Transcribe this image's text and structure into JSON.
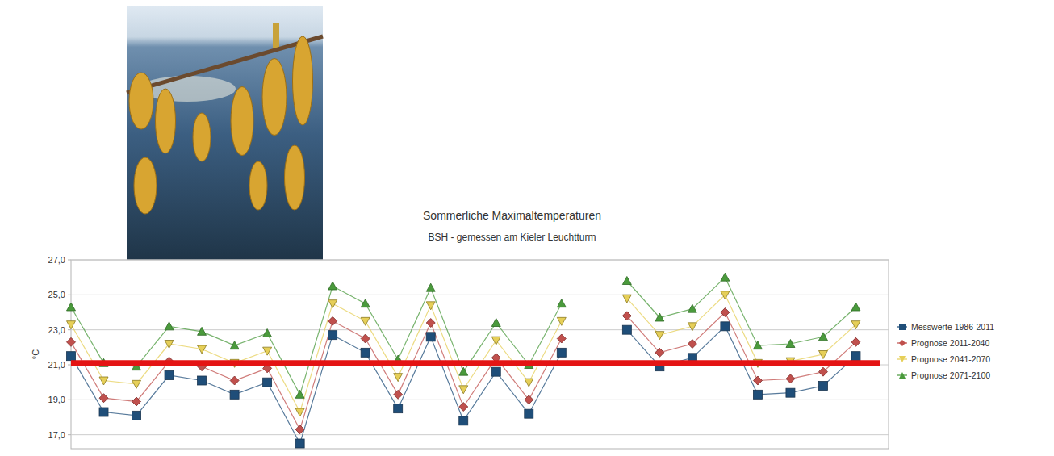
{
  "chart_data": {
    "type": "line",
    "title": "Sommerliche Maximaltemperaturen",
    "subtitle": "BSH - gemessen am Kieler Leuchtturm",
    "y_label": "°C",
    "categories": [
      null,
      null,
      null,
      null,
      null,
      null,
      null,
      null,
      null,
      null,
      null,
      null,
      null,
      null,
      null,
      null,
      null,
      null,
      null,
      null,
      null,
      null,
      null,
      null,
      null
    ],
    "series": [
      {
        "name": "Messwerte 1986-2011",
        "color": "#1f4e79",
        "marker": "square",
        "values": [
          21.5,
          18.3,
          18.1,
          20.4,
          20.1,
          19.3,
          20.0,
          16.5,
          22.7,
          21.7,
          18.5,
          22.6,
          17.8,
          20.6,
          18.2,
          21.7,
          null,
          23.0,
          20.9,
          21.4,
          23.2,
          19.3,
          19.4,
          19.8,
          21.5
        ]
      },
      {
        "name": "Prognose 2011-2040",
        "color": "#c0504d",
        "marker": "diamond",
        "values": [
          22.3,
          19.1,
          18.9,
          21.2,
          20.9,
          20.1,
          20.8,
          17.3,
          23.5,
          22.5,
          19.3,
          23.4,
          18.6,
          21.4,
          19.0,
          22.5,
          null,
          23.8,
          21.7,
          22.2,
          24.0,
          20.1,
          20.2,
          20.6,
          22.3
        ]
      },
      {
        "name": "Prognose 2041-2070",
        "color": "#e6cf58",
        "marker": "triangle-down",
        "values": [
          23.3,
          20.1,
          19.9,
          22.2,
          21.9,
          21.1,
          21.8,
          18.3,
          24.5,
          23.5,
          20.3,
          24.4,
          19.6,
          22.4,
          20.0,
          23.5,
          null,
          24.8,
          22.7,
          23.2,
          25.0,
          21.1,
          21.2,
          21.6,
          23.3
        ]
      },
      {
        "name": "Prognose 2071-2100",
        "color": "#4a9a3c",
        "marker": "triangle",
        "values": [
          24.3,
          21.1,
          20.9,
          23.2,
          22.9,
          22.1,
          22.8,
          19.3,
          25.5,
          24.5,
          21.3,
          25.4,
          20.6,
          23.4,
          21.0,
          24.5,
          null,
          25.8,
          23.7,
          24.2,
          26.0,
          22.1,
          22.2,
          22.6,
          24.3
        ]
      }
    ],
    "reference_line": {
      "value": 21.1,
      "color": "#e41414"
    },
    "ylim": [
      16.2,
      27
    ],
    "yticks": [
      {
        "value": 17,
        "label": "17,0"
      },
      {
        "value": 19,
        "label": "19,0"
      },
      {
        "value": 21,
        "label": "21,0"
      },
      {
        "value": 23,
        "label": "23,0"
      },
      {
        "value": 25,
        "label": "25,0"
      },
      {
        "value": 27,
        "label": "27,0"
      }
    ],
    "grid": true,
    "legend": "right",
    "tick_labels": "y"
  }
}
